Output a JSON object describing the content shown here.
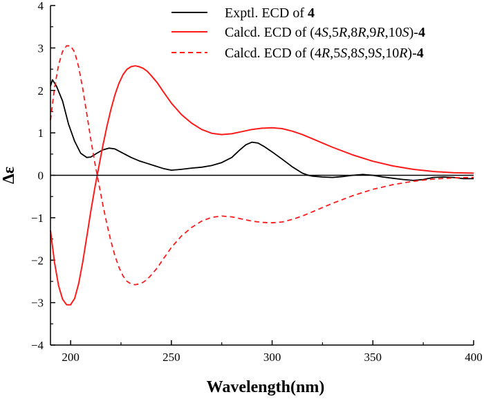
{
  "chart_data": {
    "type": "line",
    "title": "",
    "xlabel": "Wavelength(nm)",
    "ylabel": "Δε",
    "xlim": [
      190,
      400
    ],
    "ylim": [
      -4,
      4
    ],
    "xticks": [
      200,
      250,
      300,
      350,
      400
    ],
    "yticks": [
      4,
      3,
      2,
      1,
      0,
      -1,
      -2,
      -3,
      -4
    ],
    "zero_line": true,
    "legend_position": "top-right",
    "series": [
      {
        "name": "Exptl. ECD of 4",
        "legend": [
          {
            "t": "Exptl. ECD of ",
            "i": false,
            "b": false
          },
          {
            "t": "4",
            "i": false,
            "b": true
          }
        ],
        "color": "#000000",
        "dash": "solid",
        "x": [
          190,
          191,
          193,
          196,
          199,
          202,
          205,
          208,
          210,
          213,
          216,
          219,
          222,
          226,
          230,
          234,
          238,
          242,
          246,
          250,
          255,
          260,
          265,
          270,
          275,
          280,
          284,
          287,
          290,
          293,
          296,
          300,
          305,
          310,
          315,
          318,
          320,
          325,
          330,
          335,
          340,
          345,
          350,
          355,
          360,
          365,
          370,
          375,
          380,
          385,
          390,
          395,
          400
        ],
        "y": [
          2.1,
          2.25,
          2.1,
          1.75,
          1.2,
          0.8,
          0.52,
          0.42,
          0.43,
          0.52,
          0.6,
          0.64,
          0.62,
          0.52,
          0.42,
          0.34,
          0.28,
          0.22,
          0.16,
          0.12,
          0.14,
          0.17,
          0.19,
          0.23,
          0.3,
          0.42,
          0.6,
          0.72,
          0.78,
          0.76,
          0.68,
          0.55,
          0.38,
          0.2,
          0.05,
          0.0,
          -0.02,
          -0.04,
          -0.05,
          -0.03,
          0.0,
          0.02,
          0.0,
          -0.04,
          -0.07,
          -0.1,
          -0.12,
          -0.1,
          -0.05,
          -0.04,
          -0.05,
          -0.08,
          -0.08
        ]
      },
      {
        "name": "Calcd. ECD of (4S,5R,8R,9R,10S)-4",
        "legend": [
          {
            "t": "Calcd. ECD of (4",
            "i": false,
            "b": false
          },
          {
            "t": "S",
            "i": true,
            "b": false
          },
          {
            "t": ",5",
            "i": false,
            "b": false
          },
          {
            "t": "R",
            "i": true,
            "b": false
          },
          {
            "t": ",8",
            "i": false,
            "b": false
          },
          {
            "t": "R",
            "i": true,
            "b": false
          },
          {
            "t": ",9",
            "i": false,
            "b": false
          },
          {
            "t": "R",
            "i": true,
            "b": false
          },
          {
            "t": ",10",
            "i": false,
            "b": false
          },
          {
            "t": "S",
            "i": true,
            "b": false
          },
          {
            "t": ")-",
            "i": false,
            "b": false
          },
          {
            "t": "4",
            "i": false,
            "b": true
          }
        ],
        "color": "#ff1a1a",
        "dash": "solid",
        "x": [
          190,
          192,
          194,
          196,
          198,
          200,
          202,
          204,
          206,
          208,
          210,
          212,
          214,
          216,
          218,
          220,
          222,
          224,
          226,
          228,
          230,
          232,
          234,
          236,
          238,
          240,
          243,
          246,
          250,
          255,
          260,
          265,
          270,
          275,
          280,
          285,
          290,
          295,
          300,
          305,
          310,
          315,
          320,
          330,
          340,
          350,
          360,
          370,
          380,
          390,
          400
        ],
        "y": [
          -1.3,
          -2.05,
          -2.6,
          -2.92,
          -3.05,
          -3.05,
          -2.9,
          -2.55,
          -2.05,
          -1.45,
          -0.85,
          -0.3,
          0.2,
          0.7,
          1.15,
          1.55,
          1.9,
          2.17,
          2.37,
          2.5,
          2.56,
          2.58,
          2.56,
          2.52,
          2.45,
          2.35,
          2.18,
          1.97,
          1.7,
          1.43,
          1.23,
          1.08,
          0.99,
          0.96,
          0.98,
          1.03,
          1.08,
          1.11,
          1.12,
          1.1,
          1.04,
          0.96,
          0.86,
          0.66,
          0.48,
          0.33,
          0.22,
          0.14,
          0.09,
          0.06,
          0.05
        ]
      },
      {
        "name": "Calcd. ECD of (4R,5S,8S,9S,10R)-4",
        "legend": [
          {
            "t": "Calcd. ECD of (4",
            "i": false,
            "b": false
          },
          {
            "t": "R",
            "i": true,
            "b": false
          },
          {
            "t": ",5",
            "i": false,
            "b": false
          },
          {
            "t": "S",
            "i": true,
            "b": false
          },
          {
            "t": ",8",
            "i": false,
            "b": false
          },
          {
            "t": "S",
            "i": true,
            "b": false
          },
          {
            "t": ",9",
            "i": false,
            "b": false
          },
          {
            "t": "S",
            "i": true,
            "b": false
          },
          {
            "t": ",10",
            "i": false,
            "b": false
          },
          {
            "t": "R",
            "i": true,
            "b": false
          },
          {
            "t": ")-",
            "i": false,
            "b": false
          },
          {
            "t": "4",
            "i": false,
            "b": true
          }
        ],
        "color": "#ff1a1a",
        "dash": "dashed",
        "x": [
          190,
          192,
          194,
          196,
          198,
          200,
          202,
          204,
          206,
          208,
          210,
          212,
          214,
          216,
          218,
          220,
          222,
          224,
          226,
          228,
          230,
          232,
          234,
          236,
          238,
          240,
          243,
          246,
          250,
          255,
          260,
          265,
          270,
          275,
          280,
          285,
          290,
          295,
          300,
          305,
          310,
          315,
          320,
          330,
          340,
          350,
          360,
          370,
          380,
          390,
          400
        ],
        "y": [
          1.3,
          2.05,
          2.6,
          2.92,
          3.05,
          3.05,
          2.9,
          2.55,
          2.05,
          1.45,
          0.85,
          0.3,
          -0.2,
          -0.7,
          -1.15,
          -1.55,
          -1.9,
          -2.17,
          -2.37,
          -2.5,
          -2.56,
          -2.58,
          -2.56,
          -2.52,
          -2.45,
          -2.35,
          -2.18,
          -1.97,
          -1.7,
          -1.43,
          -1.23,
          -1.08,
          -0.99,
          -0.96,
          -0.98,
          -1.03,
          -1.08,
          -1.11,
          -1.12,
          -1.1,
          -1.04,
          -0.96,
          -0.86,
          -0.66,
          -0.48,
          -0.33,
          -0.22,
          -0.14,
          -0.09,
          -0.06,
          -0.05
        ]
      }
    ]
  }
}
